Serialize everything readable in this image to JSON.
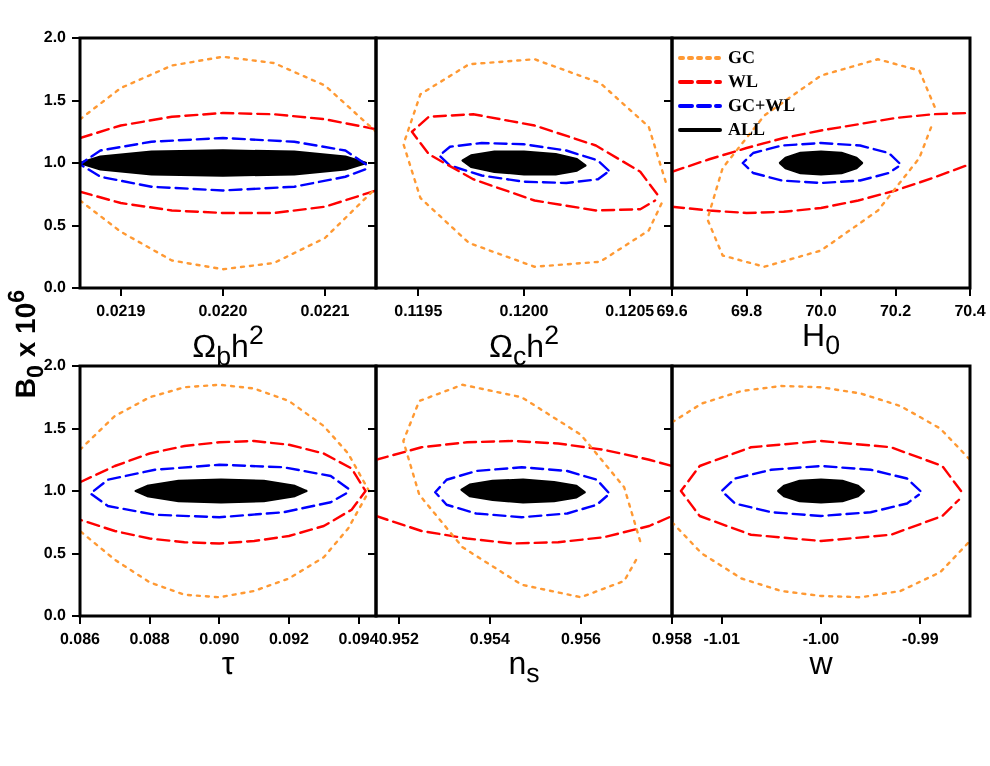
{
  "chart_data": [
    {
      "type": "line",
      "xlabel": "Ω$_{b}$h$^{2}$",
      "ylabel": "B$_{0}$ x 10$^{6}$",
      "xlim": [
        0.02186,
        0.02215
      ],
      "xticks": [
        0.0219,
        {
          "value": 0.022,
          "label": "0.0220"
        },
        0.0221
      ],
      "ylim": [
        0,
        2
      ],
      "yticks": [
        {
          "value": 0,
          "label": "0.0"
        },
        0.5,
        {
          "value": 1,
          "label": "1.0"
        },
        1.5,
        {
          "value": 2,
          "label": "2.0"
        }
      ],
      "series": [
        {
          "color": "#ff9933",
          "line_style": "dotted",
          "x": [
            0.02186,
            0.0219,
            0.02195,
            0.022,
            0.02205,
            0.0221,
            0.02215
          ],
          "values": [
            1.35,
            1.6,
            1.78,
            1.85,
            1.8,
            1.62,
            1.25
          ]
        },
        {
          "color": "#ff9933",
          "line_style": "dotted",
          "x": [
            0.02186,
            0.0219,
            0.02195,
            0.022,
            0.02205,
            0.0221,
            0.02215
          ],
          "values": [
            0.7,
            0.45,
            0.22,
            0.15,
            0.2,
            0.4,
            0.8
          ]
        },
        {
          "color": "#ff0000",
          "line_style": "dashed",
          "x": [
            0.02186,
            0.0219,
            0.02195,
            0.022,
            0.02205,
            0.0221,
            0.02215
          ],
          "values": [
            1.2,
            1.3,
            1.37,
            1.4,
            1.39,
            1.35,
            1.27
          ]
        },
        {
          "color": "#ff0000",
          "line_style": "dashed",
          "x": [
            0.02186,
            0.0219,
            0.02195,
            0.022,
            0.02205,
            0.0221,
            0.02215
          ],
          "values": [
            0.77,
            0.68,
            0.62,
            0.6,
            0.6,
            0.65,
            0.78
          ]
        },
        {
          "color": "#0000ff",
          "line_style": "dashed",
          "x": [
            0.02214,
            0.02212,
            0.02207,
            0.022,
            0.02193,
            0.02188,
            0.02186,
            0.02188,
            0.02193,
            0.022,
            0.02207,
            0.02212,
            0.02214
          ],
          "values": [
            0.99,
            1.1,
            1.17,
            1.2,
            1.17,
            1.1,
            0.99,
            0.89,
            0.81,
            0.78,
            0.81,
            0.89,
            0.95
          ]
        },
        {
          "type": "area",
          "color": "#000000",
          "line_style": "solid",
          "x": [
            0.02214,
            0.02212,
            0.02207,
            0.022,
            0.02193,
            0.02188,
            0.02186,
            0.02188,
            0.02193,
            0.022,
            0.02207,
            0.02212,
            0.02214
          ],
          "values": [
            1,
            1.05,
            1.09,
            1.1,
            1.09,
            1.05,
            1,
            0.95,
            0.91,
            0.9,
            0.91,
            0.95,
            1
          ]
        }
      ]
    },
    {
      "type": "line",
      "xlabel": "Ω$_{c}$h$^{2}$",
      "xlim": [
        0.1193,
        0.1207
      ],
      "xticks": [
        0.1195,
        {
          "value": 0.12,
          "label": "0.1200"
        },
        0.1205
      ],
      "ylim": [
        0,
        2
      ],
      "yticks": [
        0,
        0.5,
        1,
        1.5,
        2
      ],
      "tick_labels": "x",
      "series": [
        {
          "color": "#ff9933",
          "line_style": "dotted",
          "x": [
            0.12067,
            0.12059,
            0.12036,
            0.12005,
            0.11974,
            0.11951,
            0.11943,
            0.11951,
            0.11974,
            0.12005,
            0.12036,
            0.12059,
            0.12066
          ],
          "values": [
            0.85,
            1.29,
            1.64,
            1.83,
            1.79,
            1.55,
            1.15,
            0.72,
            0.36,
            0.17,
            0.21,
            0.46,
            0.71
          ]
        },
        {
          "color": "#ff0000",
          "line_style": "dashed",
          "x": [
            0.12063,
            0.12055,
            0.12034,
            0.12005,
            0.11976,
            0.11955,
            0.11947,
            0.11955,
            0.11976,
            0.12005,
            0.12034,
            0.12055,
            0.12062
          ],
          "values": [
            0.75,
            0.93,
            1.14,
            1.3,
            1.39,
            1.37,
            1.25,
            1.07,
            0.87,
            0.7,
            0.62,
            0.63,
            0.7
          ]
        },
        {
          "color": "#0000ff",
          "line_style": "dashed",
          "x": [
            0.1204,
            0.12035,
            0.1202,
            0.12,
            0.1198,
            0.11965,
            0.1196,
            0.11965,
            0.1198,
            0.12,
            0.1202,
            0.12035,
            0.12039
          ],
          "values": [
            0.94,
            1.02,
            1.1,
            1.15,
            1.16,
            1.13,
            1.06,
            0.98,
            0.9,
            0.85,
            0.84,
            0.87,
            0.92
          ]
        },
        {
          "type": "area",
          "color": "#000000",
          "line_style": "solid",
          "x": [
            0.12029,
            0.12025,
            0.12015,
            0.12,
            0.11986,
            0.11975,
            0.11971,
            0.11975,
            0.11986,
            0.12,
            0.12015,
            0.12025,
            0.12029
          ],
          "values": [
            0.98,
            1.03,
            1.07,
            1.09,
            1.09,
            1.06,
            1.02,
            0.97,
            0.93,
            0.91,
            0.91,
            0.94,
            0.98
          ]
        }
      ]
    },
    {
      "type": "line",
      "xlabel": "H$_{0}$",
      "xlim": [
        69.6,
        70.4
      ],
      "xticks": [
        69.6,
        69.8,
        {
          "value": 70,
          "label": "70.0"
        },
        70.2,
        70.4
      ],
      "ylim": [
        0,
        2
      ],
      "yticks": [
        0,
        0.5,
        1,
        1.5,
        2
      ],
      "tick_labels": "x",
      "legend": "top left",
      "series": [
        {
          "name": "GC",
          "color": "#ff9933",
          "line_style": "dotted",
          "x": [
            70.305,
            70.264,
            70.153,
            70,
            69.848,
            69.736,
            69.695,
            69.736,
            69.848,
            70,
            70.153,
            70.264,
            70.3
          ],
          "values": [
            1.45,
            1.74,
            1.83,
            1.7,
            1.38,
            0.96,
            0.55,
            0.26,
            0.17,
            0.3,
            0.62,
            1.04,
            1.32
          ]
        },
        {
          "name": "WL",
          "color": "#ff0000",
          "line_style": "dashed",
          "x": [
            69.6,
            69.7,
            69.8,
            69.9,
            70,
            70.1,
            70.2,
            70.3,
            70.4
          ],
          "values": [
            0.93,
            1.03,
            1.12,
            1.2,
            1.26,
            1.31,
            1.36,
            1.39,
            1.4
          ]
        },
        {
          "color": "#ff0000",
          "line_style": "dashed",
          "x": [
            69.6,
            69.7,
            69.8,
            69.9,
            70,
            70.1,
            70.2,
            70.3,
            70.4
          ],
          "values": [
            0.65,
            0.62,
            0.6,
            0.61,
            0.64,
            0.7,
            0.78,
            0.88,
            0.99
          ]
        },
        {
          "name": "GC+WL",
          "color": "#0000ff",
          "line_style": "dashed",
          "x": [
            70.21,
            70.182,
            70.105,
            70,
            69.895,
            69.818,
            69.79,
            69.818,
            69.895,
            70,
            70.105,
            70.182,
            70.207
          ],
          "values": [
            1,
            1.08,
            1.14,
            1.16,
            1.14,
            1.08,
            1,
            0.92,
            0.86,
            0.84,
            0.86,
            0.92,
            0.97
          ]
        },
        {
          "name": "ALL",
          "type": "area",
          "color": "#000000",
          "line_style": "solid",
          "x": [
            70.11,
            70.095,
            70.055,
            70,
            69.945,
            69.905,
            69.89,
            69.905,
            69.945,
            70,
            70.055,
            70.095,
            70.11
          ],
          "values": [
            1,
            1.04,
            1.08,
            1.09,
            1.08,
            1.04,
            1,
            0.96,
            0.92,
            0.91,
            0.92,
            0.96,
            1
          ]
        }
      ]
    },
    {
      "type": "line",
      "xlabel": "τ",
      "xlim": [
        0.086,
        0.0945
      ],
      "xticks": [
        0.086,
        0.088,
        {
          "value": 0.09,
          "label": "0.090"
        },
        0.092,
        0.094
      ],
      "ylim": [
        0,
        2
      ],
      "yticks": [
        {
          "value": 0,
          "label": "0.0"
        },
        0.5,
        {
          "value": 1,
          "label": "1.0"
        },
        1.5,
        {
          "value": 2,
          "label": "2.0"
        }
      ],
      "series": [
        {
          "color": "#ff9933",
          "line_style": "dotted",
          "x": [
            0.086,
            0.087,
            0.088,
            0.089,
            0.09,
            0.091,
            0.092,
            0.093,
            0.0937,
            0.0943,
            0.0937,
            0.093,
            0.092,
            0.091,
            0.09,
            0.089,
            0.088,
            0.087,
            0.086
          ],
          "values": [
            1.33,
            1.6,
            1.75,
            1.83,
            1.85,
            1.82,
            1.72,
            1.52,
            1.3,
            1,
            0.7,
            0.47,
            0.3,
            0.2,
            0.15,
            0.17,
            0.27,
            0.45,
            0.68
          ]
        },
        {
          "color": "#ff0000",
          "line_style": "dashed",
          "x": [
            0.086,
            0.087,
            0.088,
            0.089,
            0.09,
            0.091,
            0.092,
            0.093,
            0.0938,
            0.0942,
            0.0938,
            0.093,
            0.092,
            0.091,
            0.09,
            0.089,
            0.088,
            0.087,
            0.086
          ],
          "values": [
            1.07,
            1.2,
            1.3,
            1.36,
            1.39,
            1.4,
            1.37,
            1.3,
            1.18,
            1,
            0.85,
            0.72,
            0.64,
            0.6,
            0.58,
            0.59,
            0.62,
            0.68,
            0.77
          ]
        },
        {
          "color": "#0000ff",
          "line_style": "dashed",
          "x": [
            0.0937,
            0.0932,
            0.09185,
            0.09,
            0.08815,
            0.0868,
            0.0863,
            0.0868,
            0.08815,
            0.09,
            0.09185,
            0.0932,
            0.09364
          ],
          "values": [
            1.02,
            1.12,
            1.19,
            1.21,
            1.17,
            1.09,
            0.98,
            0.88,
            0.81,
            0.79,
            0.83,
            0.91,
            0.98
          ]
        },
        {
          "type": "area",
          "color": "#000000",
          "line_style": "solid",
          "x": [
            0.0925,
            0.09217,
            0.09128,
            0.09005,
            0.08883,
            0.08793,
            0.0876,
            0.08793,
            0.08883,
            0.09005,
            0.09128,
            0.09217,
            0.0925
          ],
          "values": [
            1,
            1.04,
            1.08,
            1.09,
            1.08,
            1.04,
            1,
            0.96,
            0.92,
            0.91,
            0.92,
            0.96,
            1
          ]
        }
      ]
    },
    {
      "type": "line",
      "xlabel": "n$_{s}$",
      "xlim": [
        0.9515,
        0.958
      ],
      "xticks": [
        0.952,
        0.954,
        0.956,
        0.958
      ],
      "ylim": [
        0,
        2
      ],
      "yticks": [
        0,
        0.5,
        1,
        1.5,
        2
      ],
      "tick_labels": "x",
      "series": [
        {
          "color": "#ff9933",
          "line_style": "dotted",
          "x": [
            0.9573,
            0.95695,
            0.956,
            0.9547,
            0.9534,
            0.95245,
            0.9521,
            0.95245,
            0.9534,
            0.9547,
            0.956,
            0.95695,
            0.95726
          ],
          "values": [
            0.6,
            1.03,
            1.45,
            1.75,
            1.85,
            1.72,
            1.4,
            0.97,
            0.55,
            0.25,
            0.15,
            0.28,
            0.48
          ]
        },
        {
          "color": "#ff0000",
          "line_style": "dashed",
          "x": [
            0.9515,
            0.9525,
            0.9535,
            0.9545,
            0.9555,
            0.9565,
            0.9575,
            0.958
          ],
          "values": [
            1.25,
            1.35,
            1.39,
            1.4,
            1.38,
            1.33,
            1.25,
            1.2
          ]
        },
        {
          "color": "#ff0000",
          "line_style": "dashed",
          "x": [
            0.9515,
            0.9525,
            0.9535,
            0.9545,
            0.9555,
            0.9565,
            0.9575,
            0.958
          ],
          "values": [
            0.8,
            0.68,
            0.62,
            0.58,
            0.59,
            0.63,
            0.72,
            0.8
          ]
        },
        {
          "color": "#0000ff",
          "line_style": "dashed",
          "x": [
            0.9566,
            0.95635,
            0.9557,
            0.9547,
            0.9537,
            0.95305,
            0.9528,
            0.95305,
            0.9537,
            0.9547,
            0.9557,
            0.95635,
            0.95657
          ],
          "values": [
            0.99,
            1.09,
            1.16,
            1.19,
            1.16,
            1.09,
            0.99,
            0.89,
            0.82,
            0.79,
            0.82,
            0.89,
            0.96
          ]
        },
        {
          "type": "area",
          "color": "#000000",
          "line_style": "solid",
          "x": [
            0.95608,
            0.9559,
            0.95541,
            0.95473,
            0.95406,
            0.95356,
            0.95338,
            0.95356,
            0.95406,
            0.95473,
            0.95541,
            0.9559,
            0.95608
          ],
          "values": [
            0.99,
            1.04,
            1.07,
            1.09,
            1.08,
            1.05,
            1.01,
            0.96,
            0.93,
            0.91,
            0.92,
            0.95,
            0.99
          ]
        }
      ]
    },
    {
      "type": "line",
      "xlabel": "w",
      "xlim": [
        -1.015,
        -0.985
      ],
      "xticks": [
        -1.01,
        {
          "value": -1,
          "label": "-1.00"
        },
        -0.99
      ],
      "ylim": [
        0,
        2
      ],
      "yticks": [
        0,
        0.5,
        1,
        1.5,
        2
      ],
      "tick_labels": "x",
      "series": [
        {
          "color": "#ff9933",
          "line_style": "dotted",
          "x": [
            -1.015,
            -1.012,
            -1.008,
            -1.004,
            -1,
            -0.996,
            -0.992,
            -0.988,
            -0.985
          ],
          "values": [
            1.55,
            1.7,
            1.8,
            1.84,
            1.83,
            1.78,
            1.68,
            1.5,
            1.25
          ]
        },
        {
          "color": "#ff9933",
          "line_style": "dotted",
          "x": [
            -1.015,
            -1.012,
            -1.008,
            -1.004,
            -1,
            -0.996,
            -0.992,
            -0.988,
            -0.985
          ],
          "values": [
            0.75,
            0.5,
            0.3,
            0.2,
            0.16,
            0.15,
            0.2,
            0.35,
            0.6
          ]
        },
        {
          "color": "#ff0000",
          "line_style": "dashed",
          "x": [
            -0.9859,
            -0.98779,
            -0.99295,
            -1,
            -1.00705,
            -1.01221,
            -1.0141,
            -1.01221,
            -1.00705,
            -1,
            -0.99295,
            -0.98779,
            -0.98611
          ],
          "values": [
            1,
            1.2,
            1.35,
            1.4,
            1.35,
            1.2,
            1,
            0.8,
            0.65,
            0.6,
            0.65,
            0.8,
            0.93
          ]
        },
        {
          "color": "#0000ff",
          "line_style": "dashed",
          "x": [
            -0.99,
            -0.99134,
            -0.995,
            -1,
            -1.005,
            -1.00866,
            -1.01,
            -1.00866,
            -1.005,
            -1,
            -0.995,
            -0.99134,
            -0.99015
          ],
          "values": [
            1,
            1.1,
            1.17,
            1.2,
            1.17,
            1.1,
            1,
            0.9,
            0.83,
            0.8,
            0.83,
            0.9,
            0.97
          ]
        },
        {
          "type": "area",
          "color": "#000000",
          "line_style": "solid",
          "x": [
            -0.9957,
            -0.99628,
            -0.99785,
            -1,
            -1.00215,
            -1.00372,
            -1.0043,
            -1.00372,
            -1.00215,
            -1,
            -0.99785,
            -0.99628,
            -0.9957
          ],
          "values": [
            1,
            1.04,
            1.08,
            1.09,
            1.08,
            1.04,
            1,
            0.96,
            0.92,
            0.91,
            0.92,
            0.96,
            1
          ]
        }
      ]
    }
  ]
}
